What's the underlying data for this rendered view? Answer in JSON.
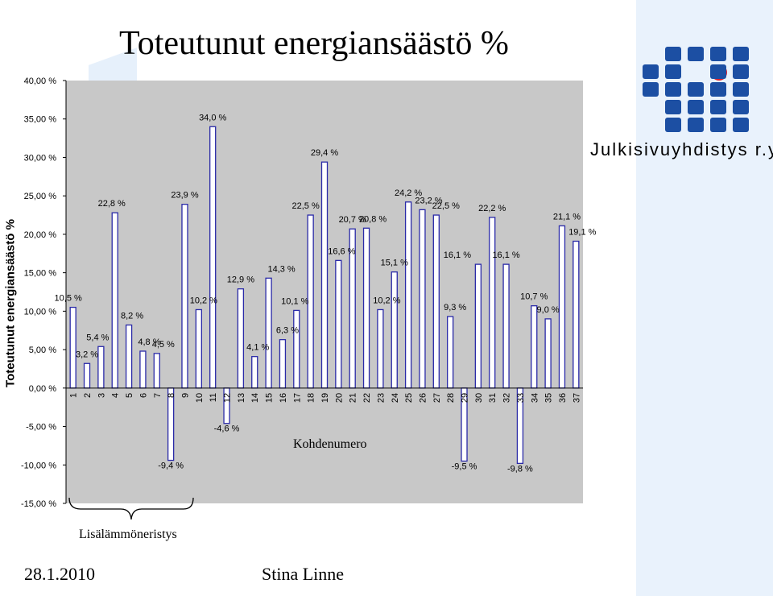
{
  "title": "Toteutunut energiansäästö %",
  "footer": {
    "date": "28.1.2010",
    "author": "Stina Linne"
  },
  "logo": {
    "text": "Julkisivuyhdistys r.y."
  },
  "chart_data": {
    "type": "bar",
    "title": "Toteutunut energiansäästö %",
    "ylabel": "Toteutunut energiansäästö %",
    "xlabel": "Kohdenumero",
    "ylim": [
      -15,
      40
    ],
    "yticks": [
      "40,00 %",
      "35,00 %",
      "30,00 %",
      "25,00 %",
      "20,00 %",
      "15,00 %",
      "10,00 %",
      "5,00 %",
      "0,00 %",
      "-5,00 %",
      "-10,00 %",
      "-15,00 %"
    ],
    "categories": [
      "1",
      "2",
      "3",
      "4",
      "5",
      "6",
      "7",
      "8",
      "9",
      "10",
      "11",
      "12",
      "13",
      "14",
      "15",
      "16",
      "17",
      "18",
      "19",
      "20",
      "21",
      "22",
      "23",
      "24",
      "25",
      "26",
      "27",
      "28",
      "29",
      "30",
      "31",
      "32",
      "33",
      "34",
      "35",
      "36",
      "37"
    ],
    "values": [
      10.5,
      3.2,
      5.4,
      22.8,
      8.2,
      4.8,
      4.5,
      -9.4,
      23.9,
      10.2,
      34.0,
      -4.6,
      12.9,
      4.1,
      14.3,
      6.3,
      10.1,
      22.5,
      29.4,
      16.6,
      20.7,
      20.8,
      10.2,
      15.1,
      24.2,
      23.2,
      22.5,
      9.3,
      -9.5,
      16.1,
      22.2,
      16.1,
      -9.8,
      10.7,
      9.0,
      21.1,
      19.1
    ],
    "data_labels": [
      "10,5 %",
      "3,2 %",
      "5,4 %",
      "22,8 %",
      "8,2 %",
      "4,8 %",
      "4,5 %",
      "-9,4 %",
      "23,9 %",
      "10,2 %",
      "34,0 %",
      "-4,6 %",
      "12,9 %",
      "4,1 %",
      "14,3 %",
      "6,3 %",
      "10,1 %",
      "22,5 %",
      "29,4 %",
      "16,6 %",
      "20,7 %",
      "20,8 %",
      "10,2 %",
      "15,1 %",
      "24,2 %",
      "23,2 %",
      "22,5 %",
      "9,3 %",
      "-9,5 %",
      "16,1 %",
      "22,2 %",
      "16,1 %",
      "-9,8 %",
      "10,7 %",
      "9,0 %",
      "21,1 %",
      "19,1 %"
    ],
    "annotation": "Lisälämmöneristys",
    "grid": false,
    "bar_color": "#ffffff",
    "bar_edge_color": "#2a2aa8",
    "plot_background": "#c8c8c8"
  }
}
